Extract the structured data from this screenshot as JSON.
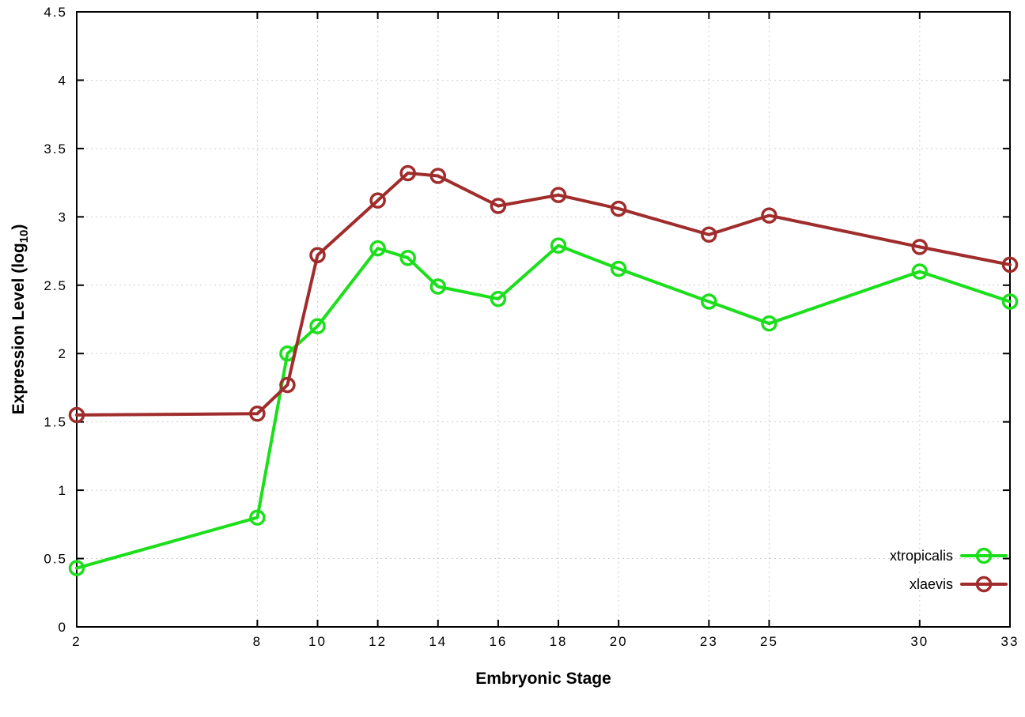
{
  "page": {
    "background": "#ffffff"
  },
  "chart_data": {
    "type": "line",
    "x": [
      2,
      8,
      9,
      10,
      12,
      13,
      14,
      16,
      18,
      20,
      23,
      25,
      30,
      33
    ],
    "series": [
      {
        "name": "xtropicalis",
        "color": "#1bdf1b",
        "values": [
          0.43,
          0.8,
          2.0,
          2.2,
          2.77,
          2.7,
          2.49,
          2.4,
          2.79,
          2.62,
          2.38,
          2.22,
          2.6,
          2.38
        ]
      },
      {
        "name": "xlaevis",
        "color": "#a02c2c",
        "values": [
          1.55,
          1.56,
          1.77,
          2.72,
          3.12,
          3.32,
          3.3,
          3.08,
          3.16,
          3.06,
          2.87,
          3.01,
          2.78,
          2.65
        ]
      }
    ],
    "xlabel": "Embryonic Stage",
    "ylabel": {
      "prefix": "Expression Level (log",
      "sub": "10",
      "suffix": ")"
    },
    "xlim": [
      2,
      33
    ],
    "ylim": [
      0,
      4.5
    ],
    "xticks": [
      2,
      8,
      10,
      12,
      14,
      16,
      18,
      20,
      23,
      25,
      30,
      33
    ],
    "xtick_labels": [
      "2",
      "8",
      "10",
      "12",
      "14",
      "16",
      "18",
      "20",
      "23",
      "25",
      "30",
      "33"
    ],
    "yticks": [
      0,
      0.5,
      1,
      1.5,
      2,
      2.5,
      3,
      3.5,
      4,
      4.5
    ],
    "ytick_labels": [
      "0",
      "0.5",
      "1",
      "1.5",
      "2",
      "2.5",
      "3",
      "3.5",
      "4",
      "4.5"
    ],
    "grid": true,
    "legend_position": "bottom-right",
    "legend": [
      "xtropicalis",
      "xlaevis"
    ]
  },
  "style": {
    "grid_color": "#cfcfcf",
    "axis_color": "#000000",
    "marker_radius": 8.5,
    "marker_stroke_width": 3.5,
    "line_width": 4
  }
}
